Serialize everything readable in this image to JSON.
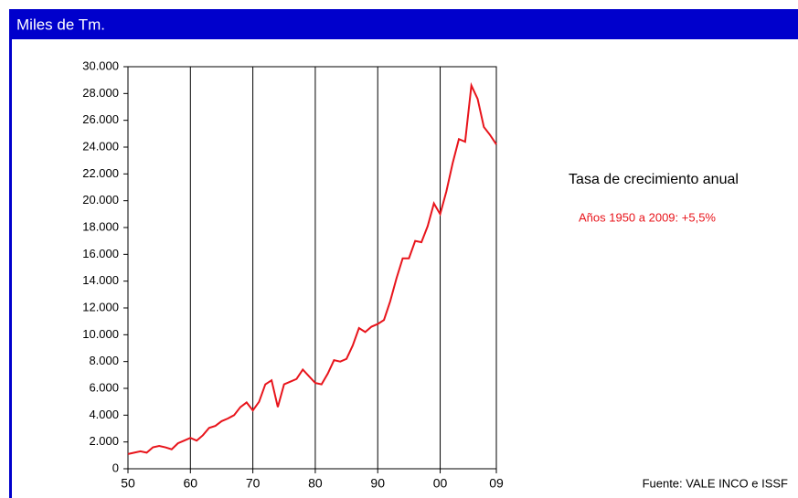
{
  "chart_data": {
    "type": "line",
    "title": "Miles de Tm.",
    "annotation": "Tasa de crecimiento anual",
    "subannotation": "Años 1950 a 2009: +5,5%",
    "source": "Fuente: VALE INCO e ISSF",
    "x": [
      1950,
      1951,
      1952,
      1953,
      1954,
      1955,
      1956,
      1957,
      1958,
      1959,
      1960,
      1961,
      1962,
      1963,
      1964,
      1965,
      1966,
      1967,
      1968,
      1969,
      1970,
      1971,
      1972,
      1973,
      1974,
      1975,
      1976,
      1977,
      1978,
      1979,
      1980,
      1981,
      1982,
      1983,
      1984,
      1985,
      1986,
      1987,
      1988,
      1989,
      1990,
      1991,
      1992,
      1993,
      1994,
      1995,
      1996,
      1997,
      1998,
      1999,
      2000,
      2001,
      2002,
      2003,
      2004,
      2005,
      2006,
      2007,
      2008,
      2009
    ],
    "series": [
      {
        "color": "#e8141b",
        "values": [
          1100,
          1200,
          1300,
          1200,
          1600,
          1700,
          1600,
          1450,
          1900,
          2100,
          2300,
          2100,
          2500,
          3050,
          3200,
          3550,
          3750,
          4000,
          4600,
          4950,
          4350,
          5000,
          6300,
          6600,
          4600,
          6300,
          6500,
          6700,
          7400,
          6900,
          6400,
          6300,
          7100,
          8100,
          8000,
          8200,
          9200,
          10500,
          10200,
          10600,
          10800,
          11100,
          12500,
          14200,
          15700,
          15700,
          17000,
          16900,
          18100,
          19800,
          19000,
          20700,
          22800,
          24600,
          24400,
          28600,
          27600,
          25500,
          24900,
          24200
        ]
      }
    ],
    "xlim": [
      1950,
      2009
    ],
    "xticks": [
      {
        "value": 1950,
        "label": "50"
      },
      {
        "value": 1960,
        "label": "60"
      },
      {
        "value": 1970,
        "label": "70"
      },
      {
        "value": 1980,
        "label": "80"
      },
      {
        "value": 1990,
        "label": "90"
      },
      {
        "value": 2000,
        "label": "00"
      },
      {
        "value": 2009,
        "label": "09"
      }
    ],
    "ylim": [
      0,
      30000
    ],
    "yticks": [
      0,
      {
        "value": 2000,
        "label": "2.000"
      },
      {
        "value": 4000,
        "label": "4.000"
      },
      {
        "value": 6000,
        "label": "6.000"
      },
      {
        "value": 8000,
        "label": "8.000"
      },
      {
        "value": 10000,
        "label": "10.000"
      },
      {
        "value": 12000,
        "label": "12.000"
      },
      {
        "value": 14000,
        "label": "14.000"
      },
      {
        "value": 16000,
        "label": "16.000"
      },
      {
        "value": 18000,
        "label": "18.000"
      },
      {
        "value": 20000,
        "label": "20.000"
      },
      {
        "value": 22000,
        "label": "22.000"
      },
      {
        "value": 24000,
        "label": "24.000"
      },
      {
        "value": 26000,
        "label": "26.000"
      },
      {
        "value": 28000,
        "label": "28.000"
      },
      {
        "value": 30000,
        "label": "30.000"
      }
    ],
    "grid": true
  }
}
